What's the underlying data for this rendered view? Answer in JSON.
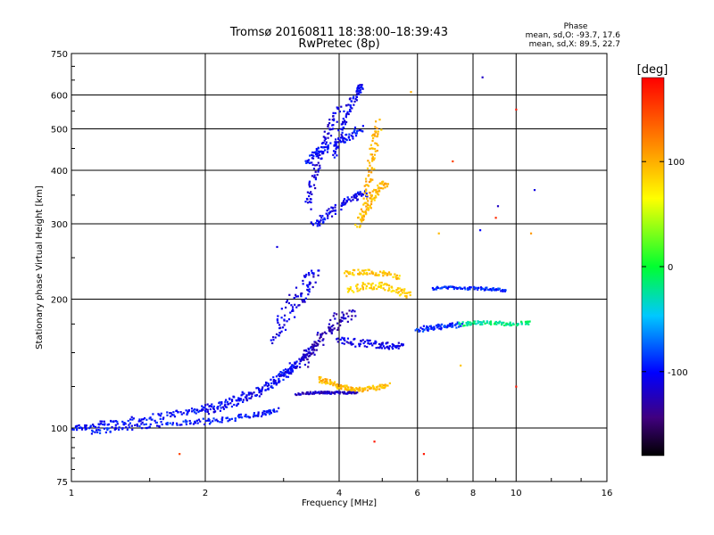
{
  "chart_data": {
    "type": "scatter",
    "title": "Tromsø 20160811 18:38:00–18:39:43",
    "subtitle": "RwPretec (8p)",
    "xlabel": "Frequency [MHz]",
    "ylabel": "Stationary phase Virtual Height [km]",
    "x_scale": "log",
    "y_scale": "log",
    "xlim": [
      1,
      16
    ],
    "ylim": [
      75,
      750
    ],
    "x_ticks": [
      1,
      2,
      4,
      6,
      8,
      10,
      16
    ],
    "x_tick_labels": [
      "1",
      "2",
      "4",
      "6",
      "8",
      "10",
      "16"
    ],
    "y_ticks": [
      75,
      100,
      200,
      300,
      400,
      500,
      600,
      750
    ],
    "y_tick_labels": [
      "75",
      "100",
      "200",
      "300",
      "400",
      "500",
      "600",
      "750"
    ],
    "grid": true,
    "phase_info": {
      "header": "Phase",
      "line_o": "mean, sd,O: -93.7, 17.6",
      "line_x": "mean, sd,X:  89.5, 22.7"
    },
    "colorbar": {
      "label": "[deg]",
      "range": [
        -180,
        180
      ],
      "ticks": [
        100,
        0,
        -100
      ],
      "tick_labels": [
        "100",
        "0",
        "-100"
      ]
    },
    "traces": [
      {
        "x": [
          1.0,
          1.1,
          1.25,
          1.45,
          1.7,
          1.9,
          2.1,
          2.4,
          2.7,
          2.95,
          3.15
        ],
        "y": [
          100,
          101,
          103,
          105,
          108,
          110,
          113,
          118,
          124,
          132,
          140
        ],
        "phase": -100,
        "spread": 0.018
      },
      {
        "x": [
          1.1,
          1.3,
          1.55,
          1.85,
          2.1,
          2.4,
          2.7,
          2.9
        ],
        "y": [
          98,
          100,
          102,
          103,
          104,
          106,
          108,
          110
        ],
        "phase": -95,
        "spread": 0.015
      },
      {
        "x": [
          2.0,
          2.3,
          2.6,
          2.9,
          3.1,
          3.3,
          3.5
        ],
        "y": [
          108,
          114,
          120,
          128,
          136,
          145,
          155
        ],
        "phase": -105,
        "spread": 0.015
      },
      {
        "x": [
          3.2,
          3.5,
          3.8,
          4.1,
          4.4
        ],
        "y": [
          120,
          121,
          121,
          121,
          121
        ],
        "phase": -120,
        "spread": 0.006
      },
      {
        "x": [
          3.3,
          3.4,
          3.6,
          3.8,
          4.0,
          4.3
        ],
        "y": [
          140,
          150,
          160,
          170,
          180,
          185
        ],
        "phase": -125,
        "spread": 0.03
      },
      {
        "x": [
          2.9,
          3.0,
          3.2,
          3.4,
          3.55
        ],
        "y": [
          160,
          180,
          200,
          215,
          230
        ],
        "phase": -110,
        "spread": 0.035
      },
      {
        "x": [
          3.5,
          3.7,
          4.0,
          4.3,
          4.6
        ],
        "y": [
          300,
          310,
          330,
          345,
          355
        ],
        "phase": -105,
        "spread": 0.02
      },
      {
        "x": [
          3.4,
          3.5,
          3.6,
          3.8,
          4.0
        ],
        "y": [
          330,
          380,
          440,
          500,
          560
        ],
        "phase": -110,
        "spread": 0.02
      },
      {
        "x": [
          3.9,
          4.05,
          4.2,
          4.4,
          4.5
        ],
        "y": [
          430,
          500,
          560,
          610,
          630
        ],
        "phase": -105,
        "spread": 0.015
      },
      {
        "x": [
          3.4,
          3.6,
          3.9,
          4.2,
          4.5
        ],
        "y": [
          420,
          440,
          460,
          480,
          500
        ],
        "phase": -100,
        "spread": 0.02
      },
      {
        "x": [
          4.4,
          4.55,
          4.7,
          4.9,
          5.1
        ],
        "y": [
          300,
          320,
          340,
          360,
          380
        ],
        "phase": 95,
        "spread": 0.02
      },
      {
        "x": [
          4.6,
          4.7,
          4.8,
          4.9
        ],
        "y": [
          350,
          400,
          460,
          520
        ],
        "phase": 100,
        "spread": 0.02
      },
      {
        "x": [
          3.6,
          3.8,
          4.0,
          4.2,
          4.5,
          4.8,
          5.2
        ],
        "y": [
          130,
          128,
          125,
          124,
          123,
          124,
          126
        ],
        "phase": 95,
        "spread": 0.012
      },
      {
        "x": [
          4.2,
          4.6,
          5.0,
          5.4,
          5.8
        ],
        "y": [
          210,
          215,
          215,
          210,
          205
        ],
        "phase": 85,
        "spread": 0.02
      },
      {
        "x": [
          4.1,
          4.5,
          5.0,
          5.5
        ],
        "y": [
          230,
          232,
          230,
          225
        ],
        "phase": 90,
        "spread": 0.015
      },
      {
        "x": [
          4.0,
          4.4,
          4.8,
          5.2,
          5.6
        ],
        "y": [
          160,
          158,
          157,
          156,
          155
        ],
        "phase": -110,
        "spread": 0.02
      },
      {
        "x": [
          6.0,
          6.5,
          7.0,
          7.5
        ],
        "y": [
          170,
          172,
          173,
          175
        ],
        "phase": -90,
        "spread": 0.015
      },
      {
        "x": [
          6.5,
          7.2,
          8.0,
          8.8,
          9.5
        ],
        "y": [
          212,
          213,
          212,
          211,
          210
        ],
        "phase": -90,
        "spread": 0.008
      },
      {
        "x": [
          7.5,
          8.2,
          9.0,
          9.8,
          10.8
        ],
        "y": [
          175,
          176,
          176,
          175,
          176
        ],
        "phase": -20,
        "spread": 0.01
      }
    ],
    "isolated_points": [
      {
        "x": 8.4,
        "y": 660,
        "phase": -120
      },
      {
        "x": 5.8,
        "y": 610,
        "phase": 100
      },
      {
        "x": 10.0,
        "y": 555,
        "phase": 170
      },
      {
        "x": 7.2,
        "y": 420,
        "phase": 150
      },
      {
        "x": 11.0,
        "y": 360,
        "phase": -110
      },
      {
        "x": 9.1,
        "y": 330,
        "phase": -120
      },
      {
        "x": 9.0,
        "y": 310,
        "phase": 160
      },
      {
        "x": 10.8,
        "y": 285,
        "phase": 110
      },
      {
        "x": 6.7,
        "y": 285,
        "phase": 95
      },
      {
        "x": 8.3,
        "y": 290,
        "phase": -100
      },
      {
        "x": 2.9,
        "y": 265,
        "phase": -110
      },
      {
        "x": 7.5,
        "y": 140,
        "phase": 90
      },
      {
        "x": 10.0,
        "y": 125,
        "phase": 170
      },
      {
        "x": 4.8,
        "y": 93,
        "phase": 170
      },
      {
        "x": 6.2,
        "y": 87,
        "phase": 170
      },
      {
        "x": 1.75,
        "y": 87,
        "phase": 150
      }
    ]
  }
}
